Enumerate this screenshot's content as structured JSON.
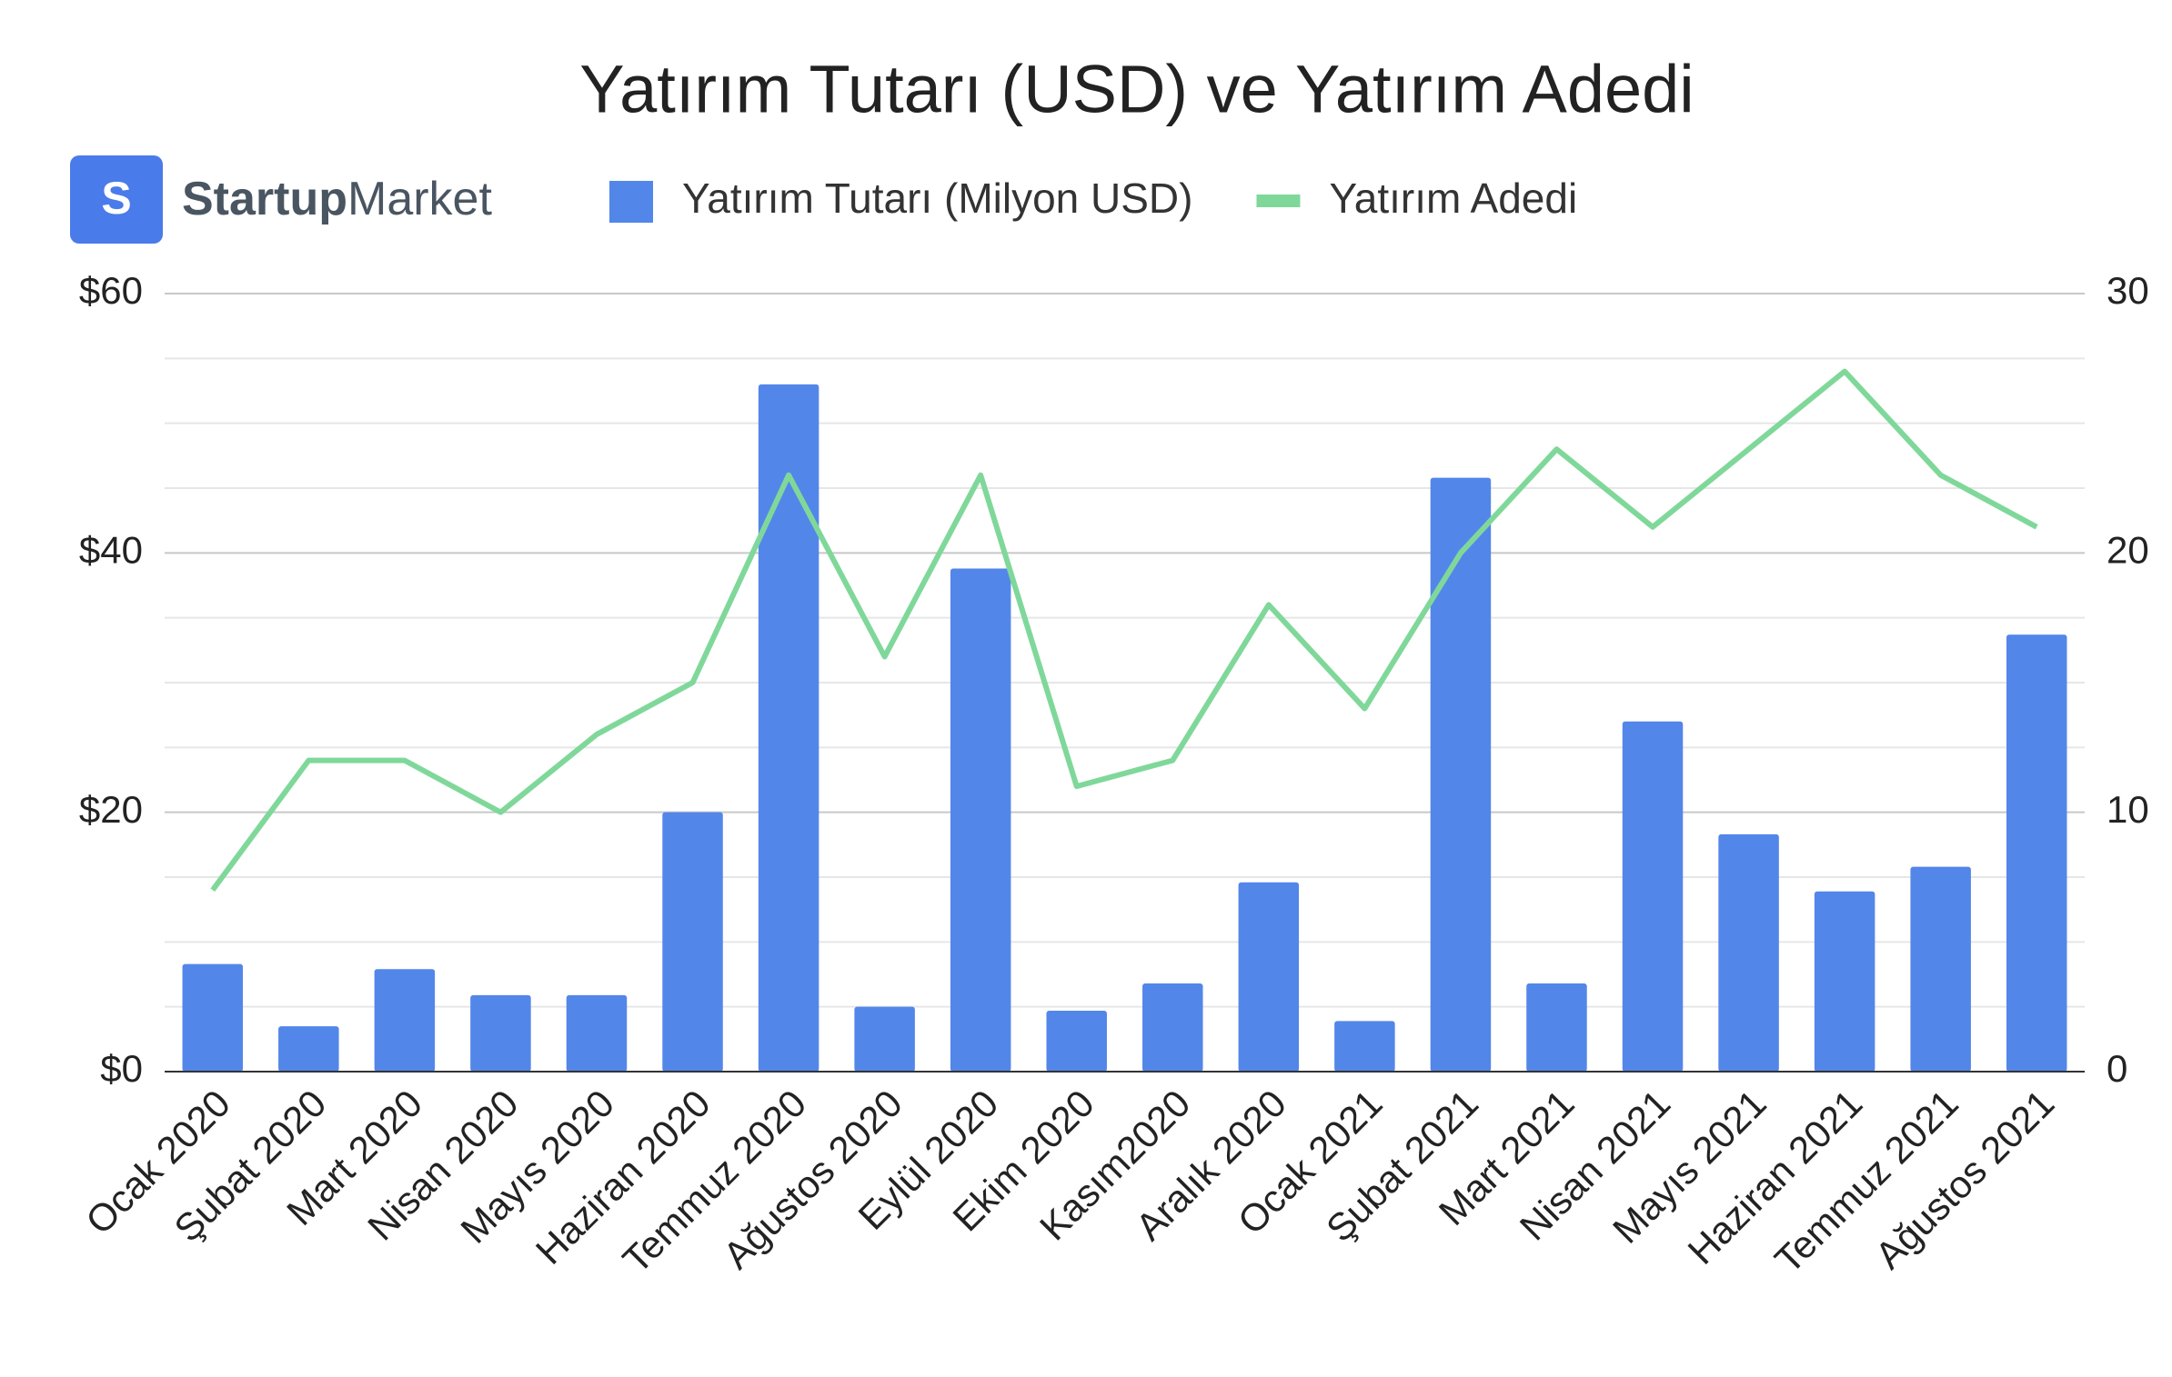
{
  "logo": {
    "letter": "S",
    "bold": "Startup",
    "regular": "Market"
  },
  "chart_data": {
    "type": "bar-line",
    "title": "Yatırım Tutarı (USD) ve Yatırım Adedi",
    "categories": [
      "Ocak 2020",
      "Şubat 2020",
      "Mart 2020",
      "Nisan 2020",
      "Mayıs 2020",
      "Haziran 2020",
      "Temmuz 2020",
      "Ağustos 2020",
      "Eylül 2020",
      "Ekim 2020",
      "Kasım2020",
      "Aralık 2020",
      "Ocak 2021",
      "Şubat 2021",
      "Mart 2021",
      "Nisan 2021",
      "Mayıs 2021",
      "Haziran 2021",
      "Temmuz 2021",
      "Ağustos 2021"
    ],
    "series": [
      {
        "name": "Yatırım Tutarı (Milyon USD)",
        "type": "bar",
        "color": "#5386e9",
        "values": [
          8.3,
          3.5,
          7.9,
          5.9,
          5.9,
          20,
          53,
          5,
          38.8,
          4.7,
          6.8,
          14.6,
          3.9,
          45.8,
          6.8,
          27,
          18.3,
          13.9,
          15.8,
          33.7
        ]
      },
      {
        "name": "Yatırım Adedi",
        "type": "line",
        "axis": "y2",
        "color": "#7fd89a",
        "values": [
          7,
          12,
          12,
          10,
          13,
          15,
          23,
          16,
          23,
          11,
          12,
          18,
          14,
          20,
          24,
          21,
          24,
          27,
          23,
          21
        ]
      }
    ],
    "ylim": [
      0,
      60
    ],
    "yticks": [
      {
        "value": 0,
        "label": "$0"
      },
      {
        "value": 20,
        "label": "$20"
      },
      {
        "value": 40,
        "label": "$40"
      },
      {
        "value": 60,
        "label": "$60"
      }
    ],
    "yminorticks": [
      5,
      10,
      15,
      25,
      30,
      35,
      45,
      50,
      55
    ],
    "y2lim": [
      0,
      30
    ],
    "y2ticks": [
      0,
      10,
      20,
      30
    ],
    "grid": true,
    "legend": "top"
  }
}
